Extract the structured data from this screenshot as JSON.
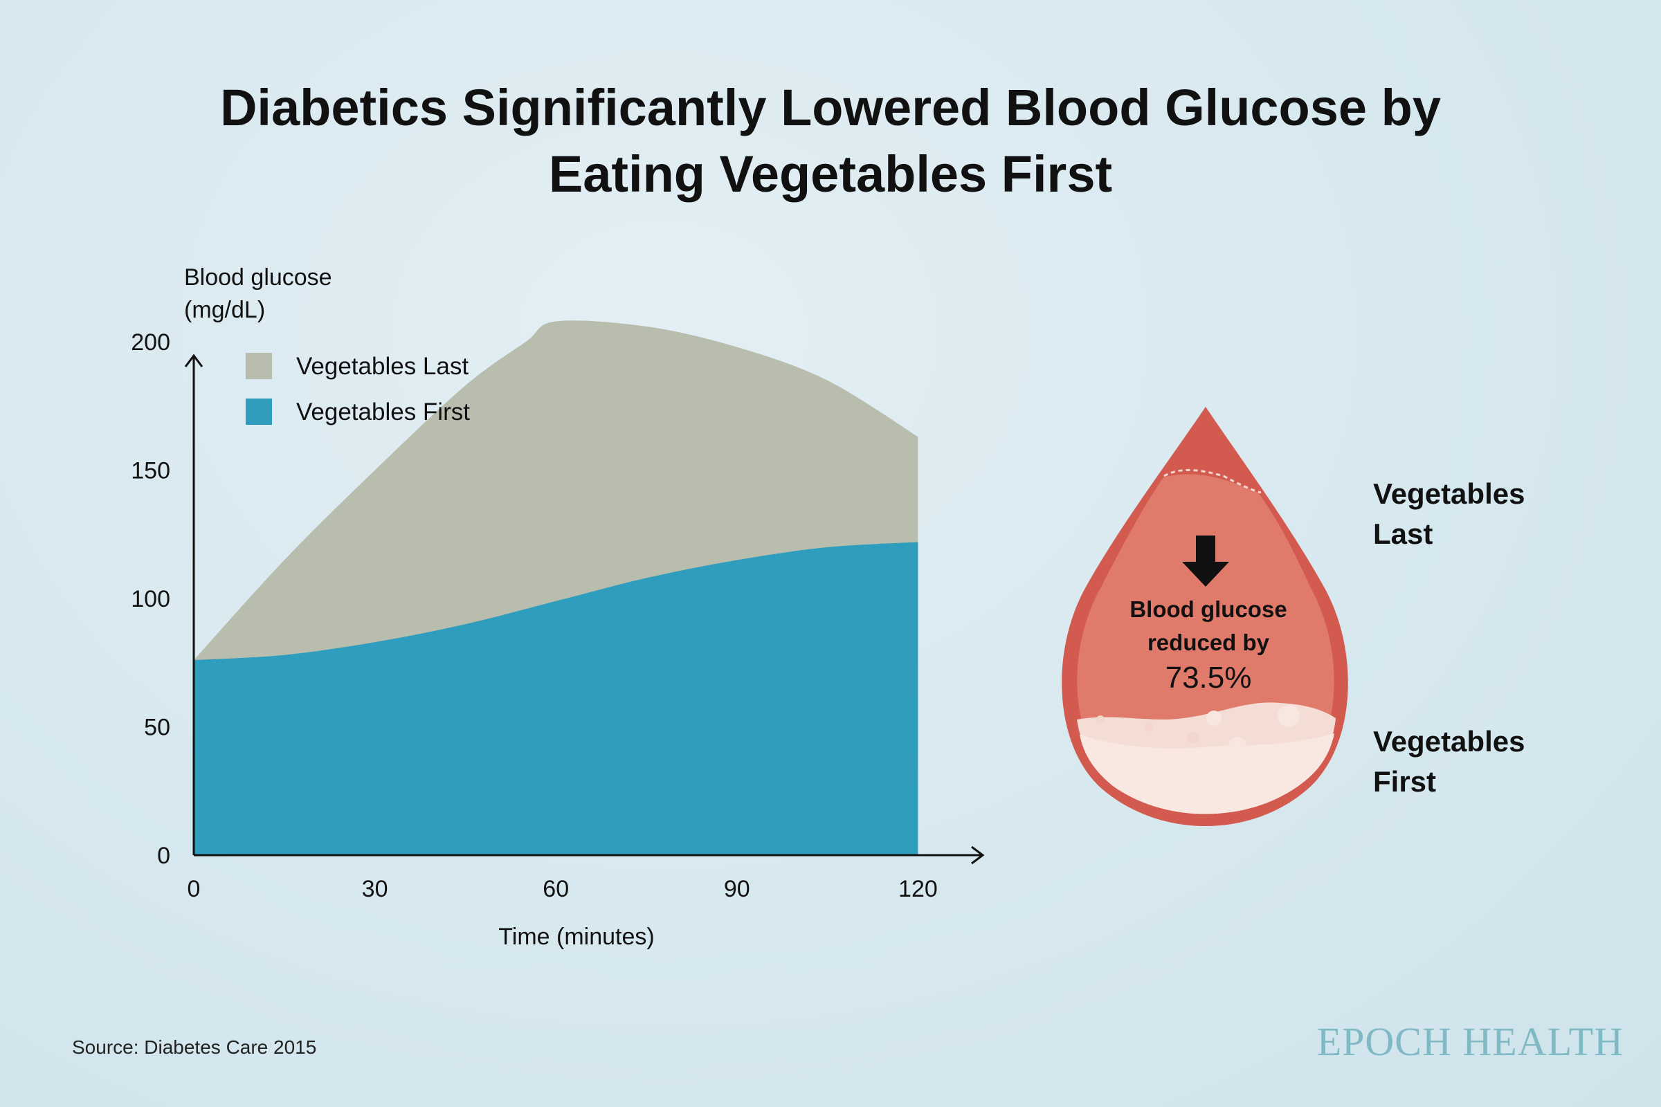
{
  "title_line1": "Diabetics Significantly Lowered Blood Glucose by",
  "title_line2": "Eating Vegetables First",
  "source": "Source: Diabetes Care 2015",
  "brand": "EPOCH HEALTH",
  "colors": {
    "veg_last": "#b9bdad",
    "veg_first": "#2f9dbd",
    "drop_outer": "#d35a4f",
    "drop_inner": "#e07a6a",
    "drop_bottom": "#f4ddd4"
  },
  "drop": {
    "line1": "Blood glucose",
    "line2": "reduced by",
    "value": "73.5%",
    "label_top_line1": "Vegetables",
    "label_top_line2": "Last",
    "label_bottom_line1": "Vegetables",
    "label_bottom_line2": "First",
    "icon": "down-arrow-icon"
  },
  "chart_data": {
    "type": "area",
    "ylabel_line1": "Blood glucose",
    "ylabel_line2": "(mg/dL)",
    "xlabel": "Time (minutes)",
    "xlim": [
      0,
      125
    ],
    "ylim": [
      0,
      220
    ],
    "xticks": [
      0,
      30,
      60,
      90,
      120
    ],
    "yticks": [
      0,
      50,
      100,
      150,
      200
    ],
    "legend_position": "top-left",
    "series": [
      {
        "name": "Vegetables Last",
        "color": "#b9bdad",
        "x": [
          0,
          15,
          30,
          45,
          55,
          60,
          75,
          90,
          105,
          120
        ],
        "y": [
          76,
          115,
          150,
          183,
          200,
          208,
          206,
          198,
          185,
          163
        ]
      },
      {
        "name": "Vegetables First",
        "color": "#2f9dbd",
        "x": [
          0,
          15,
          30,
          45,
          60,
          75,
          90,
          105,
          120
        ],
        "y": [
          76,
          78,
          83,
          90,
          99,
          108,
          115,
          120,
          122
        ]
      }
    ]
  }
}
